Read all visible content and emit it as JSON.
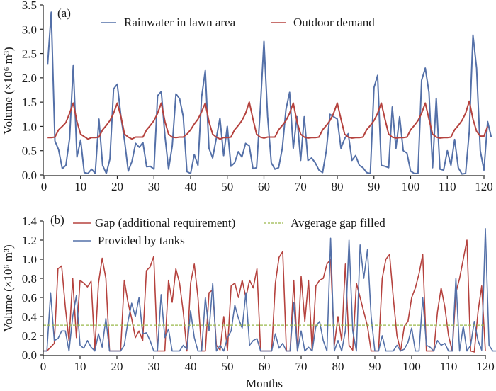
{
  "chart_data": [
    {
      "type": "line",
      "panel_label": "(a)",
      "title": "",
      "xlabel": "",
      "ylabel": "Volume (×10⁶ m³)",
      "xlim": [
        0,
        120
      ],
      "ylim": [
        0,
        3.5
      ],
      "xticks": [
        0,
        10,
        20,
        30,
        40,
        50,
        60,
        70,
        80,
        90,
        100,
        110,
        120
      ],
      "yticks": [
        "0.0",
        "0.5",
        "1.0",
        "1.5",
        "2.0",
        "2.5",
        "3.0",
        "3.5"
      ],
      "legend_position": "top",
      "grid": false,
      "series": [
        {
          "name": "Rainwater in lawn area",
          "color": "#5470a8",
          "style": "solid",
          "x_start": 1,
          "values": [
            2.27,
            3.35,
            0.7,
            0.52,
            0.13,
            0.2,
            0.75,
            2.25,
            0.37,
            0.72,
            0.05,
            0.03,
            0.12,
            0.03,
            1.15,
            0.2,
            0.03,
            0.33,
            1.77,
            1.87,
            1.2,
            0.7,
            0.08,
            0.28,
            0.65,
            0.57,
            0.67,
            0.17,
            0.18,
            0.12,
            1.63,
            1.72,
            0.8,
            0.12,
            0.6,
            1.67,
            1.57,
            1.2,
            0.07,
            0.03,
            0.42,
            0.2,
            1.6,
            2.15,
            0.55,
            0.35,
            0.75,
            1.17,
            0.4,
            1.0,
            0.18,
            0.25,
            0.48,
            0.37,
            0.65,
            0.6,
            0.13,
            0.15,
            1.35,
            2.75,
            1.2,
            0.25,
            0.12,
            0.15,
            0.55,
            1.35,
            1.7,
            0.55,
            1.2,
            0.3,
            1.2,
            0.3,
            0.35,
            0.25,
            0.1,
            0.05,
            0.5,
            1.25,
            1.2,
            1.15,
            0.55,
            0.75,
            0.85,
            0.3,
            0.4,
            0.2,
            0.15,
            0.05,
            0.03,
            1.8,
            2.05,
            0.2,
            0.18,
            0.15,
            1.4,
            0.55,
            1.2,
            0.5,
            0.45,
            0.08,
            0.03,
            0.03,
            1.95,
            2.2,
            1.7,
            0.15,
            1.58,
            0.12,
            0.1,
            0.5,
            0.2,
            0.73,
            0.15,
            0.02,
            0.03,
            0.9,
            2.88,
            2.2,
            0.5,
            0.1,
            1.1,
            0.78
          ],
          "note": "approximate monthly values read from the plotted line"
        },
        {
          "name": "Outdoor demand",
          "color": "#b5423e",
          "style": "solid",
          "x_start": 1,
          "values": [
            0.77,
            0.77,
            0.78,
            0.93,
            1.0,
            1.08,
            1.27,
            1.48,
            1.1,
            0.84,
            0.79,
            0.74,
            0.77,
            0.77,
            0.78,
            0.93,
            1.02,
            1.12,
            1.27,
            1.48,
            1.2,
            0.84,
            0.78,
            0.74,
            0.78,
            0.78,
            0.78,
            0.93,
            1.02,
            1.12,
            1.27,
            1.48,
            1.1,
            0.84,
            0.78,
            0.77,
            0.78,
            0.78,
            0.84,
            0.93,
            1.05,
            1.15,
            1.3,
            1.48,
            1.1,
            0.84,
            0.78,
            0.74,
            0.77,
            0.77,
            0.78,
            0.93,
            1.02,
            1.12,
            1.27,
            1.5,
            1.15,
            0.84,
            0.78,
            0.76,
            0.78,
            0.78,
            0.78,
            0.93,
            1.02,
            1.12,
            1.27,
            1.48,
            1.1,
            0.84,
            0.78,
            0.76,
            0.77,
            0.77,
            0.78,
            0.93,
            1.02,
            1.12,
            1.27,
            1.48,
            1.15,
            0.84,
            0.78,
            0.76,
            0.77,
            0.77,
            0.78,
            0.93,
            1.02,
            1.12,
            1.27,
            1.48,
            1.15,
            0.84,
            0.78,
            0.76,
            0.77,
            0.77,
            0.78,
            0.93,
            1.02,
            1.12,
            1.27,
            1.48,
            1.15,
            0.84,
            0.78,
            0.76,
            0.77,
            0.77,
            0.78,
            0.93,
            1.02,
            1.12,
            1.27,
            1.52,
            1.15,
            0.9,
            0.8,
            0.8,
            1.0
          ]
        }
      ]
    },
    {
      "type": "line",
      "panel_label": "(b)",
      "title": "",
      "xlabel": "Months",
      "ylabel": "Volume (×10⁶ m³)",
      "xlim": [
        0,
        120
      ],
      "ylim": [
        0,
        1.4
      ],
      "xticks": [
        0,
        10,
        20,
        30,
        40,
        50,
        60,
        70,
        80,
        90,
        100,
        110,
        120
      ],
      "yticks": [
        "0.0",
        "0.2",
        "0.4",
        "0.6",
        "0.8",
        "1.0",
        "1.2",
        "1.4"
      ],
      "legend_position": "top",
      "grid": false,
      "series": [
        {
          "name": "Gap (additional requirement)",
          "color": "#b5423e",
          "style": "solid",
          "x_start": 0,
          "values": [
            0.04,
            0.04,
            0.08,
            0.12,
            0.9,
            0.93,
            0.5,
            0.15,
            0.8,
            0.18,
            0.78,
            0.75,
            0.71,
            0.77,
            0.05,
            0.75,
            1.01,
            0.8,
            0.04,
            0.04,
            0.04,
            0.04,
            0.78,
            0.55,
            0.38,
            0.18,
            0.25,
            0.15,
            0.88,
            0.92,
            1.03,
            0.04,
            0.04,
            0.04,
            0.78,
            0.55,
            0.9,
            0.75,
            0.45,
            0.04,
            0.75,
            0.95,
            0.6,
            0.04,
            0.04,
            0.65,
            0.68,
            0.1,
            0.05,
            0.4,
            0.05,
            0.72,
            0.75,
            0.6,
            0.78,
            0.6,
            0.78,
            0.7,
            0.9,
            0.04,
            0.04,
            0.04,
            0.04,
            0.75,
            1.02,
            1.08,
            0.04,
            0.04,
            0.78,
            0.04,
            0.82,
            0.35,
            0.78,
            0.04,
            0.72,
            0.78,
            0.8,
            0.95,
            1.0,
            0.1,
            0.4,
            0.15,
            0.95,
            0.1,
            0.05,
            0.75,
            0.6,
            0.45,
            0.3,
            0.04,
            0.04,
            0.04,
            0.8,
            1.0,
            1.05,
            0.6,
            0.2,
            0.04,
            0.3,
            0.35,
            0.6,
            0.7,
            0.85,
            1.05,
            0.04,
            0.04,
            0.04,
            0.45,
            0.7,
            0.5,
            0.2,
            0.04,
            0.65,
            0.8,
            1.0,
            1.2,
            0.04,
            0.03,
            0.45,
            0.72,
            0.04
          ],
          "note": "approximate monthly values read from the plotted line"
        },
        {
          "name": "Provided by tanks",
          "color": "#5470a8",
          "style": "solid",
          "x_start": 0,
          "values": [
            0.04,
            0.04,
            0.65,
            0.15,
            0.17,
            0.25,
            0.25,
            0.04,
            0.4,
            0.62,
            0.1,
            0.07,
            0.15,
            0.08,
            0.04,
            0.22,
            0.08,
            0.38,
            0.04,
            0.04,
            0.04,
            0.04,
            0.1,
            0.35,
            0.54,
            0.4,
            0.6,
            0.22,
            0.23,
            0.15,
            0.04,
            0.04,
            0.63,
            0.18,
            0.27,
            0.04,
            0.04,
            0.04,
            0.1,
            0.06,
            0.46,
            0.18,
            0.04,
            0.04,
            0.6,
            0.25,
            0.75,
            0.04,
            0.1,
            0.04,
            0.18,
            0.25,
            0.52,
            0.38,
            0.28,
            0.65,
            0.1,
            0.15,
            0.17,
            0.04,
            0.04,
            0.04,
            0.04,
            0.22,
            0.07,
            0.12,
            0.04,
            0.04,
            0.55,
            0.04,
            0.25,
            0.04,
            0.08,
            0.04,
            0.3,
            0.35,
            0.15,
            0.04,
            1.22,
            0.04,
            0.15,
            0.04,
            0.25,
            1.2,
            0.25,
            0.04,
            1.15,
            0.8,
            1.1,
            0.4,
            0.04,
            0.04,
            0.2,
            0.04,
            0.04,
            0.04,
            0.1,
            0.04,
            0.06,
            0.13,
            0.28,
            0.04,
            0.04,
            0.6,
            0.1,
            0.08,
            0.04,
            0.15,
            0.1,
            0.12,
            0.04,
            0.04,
            0.8,
            0.04,
            0.3,
            0.04,
            0.1,
            0.35,
            0.15,
            0.05,
            1.32,
            0.1,
            0.04,
            0.04,
            0.07,
            0.08,
            0.04
          ],
          "note": "approximate monthly values read from the plotted line"
        },
        {
          "name": "Avgerage gap filled",
          "color": "#9ab84a",
          "style": "dashed",
          "constant": 0.31
        }
      ]
    }
  ]
}
